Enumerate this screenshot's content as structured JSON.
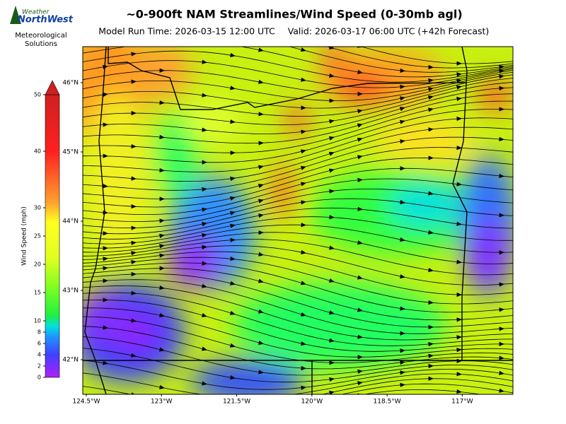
{
  "header": {
    "title": "~0-900ft NAM Streamlines/Wind Speed (0-30mb agl)",
    "run": "Model Run Time: 2026-03-15 12:00 UTC",
    "valid": "Valid: 2026-03-17 06:00 UTC  (+42h Forecast)"
  },
  "logo": {
    "line1": "Weather",
    "line2": "NorthWest",
    "caption": "Meteorological Solutions"
  },
  "colorbar": {
    "label": "Wind Speed (mph)",
    "lim": [
      0,
      50
    ],
    "ticks": [
      0,
      2,
      4,
      6,
      8,
      10,
      15,
      20,
      25,
      30,
      40,
      50
    ]
  },
  "map": {
    "xlim": [
      -124.57,
      -115.99
    ],
    "ylim": [
      41.5,
      46.52
    ],
    "xticks": [
      {
        "value": -124.5,
        "label": "124.5°W"
      },
      {
        "value": -123,
        "label": "123°W"
      },
      {
        "value": -121.5,
        "label": "121.5°W"
      },
      {
        "value": -120,
        "label": "120°W"
      },
      {
        "value": -118.5,
        "label": "118.5°W"
      },
      {
        "value": -117,
        "label": "117°W"
      }
    ],
    "yticks": [
      {
        "value": 46,
        "label": "46°N"
      },
      {
        "value": 45,
        "label": "45°N"
      },
      {
        "value": 44,
        "label": "44°N"
      },
      {
        "value": 43,
        "label": "43°N"
      },
      {
        "value": 42,
        "label": "42°N"
      }
    ]
  }
}
